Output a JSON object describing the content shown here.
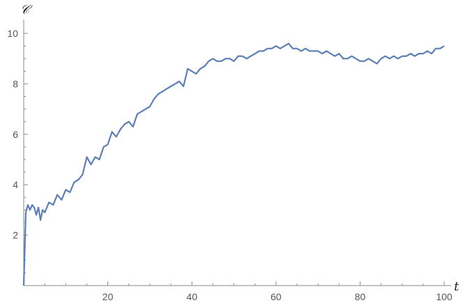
{
  "chart_data": {
    "type": "line",
    "title": "",
    "xlabel": "t",
    "ylabel": "𝒞",
    "xlim": [
      0,
      100
    ],
    "ylim": [
      0,
      10
    ],
    "xticks": [
      20,
      40,
      60,
      80,
      100
    ],
    "yticks": [
      2,
      4,
      6,
      8,
      10
    ],
    "grid": false,
    "legend": "none",
    "color": "#5a7fb5",
    "series": [
      {
        "x": [
          0,
          0.5,
          1,
          1.5,
          2,
          2.5,
          3,
          3.5,
          4,
          4.5,
          5,
          6,
          7,
          8,
          9,
          10,
          11,
          12,
          13,
          14,
          15,
          16,
          17,
          18,
          19,
          20,
          21,
          22,
          23,
          24,
          25,
          26,
          27,
          28,
          29,
          30,
          31,
          32,
          33,
          34,
          35,
          36,
          37,
          38,
          39,
          40,
          41,
          42,
          43,
          44,
          45,
          46,
          47,
          48,
          49,
          50,
          51,
          52,
          53,
          54,
          55,
          56,
          57,
          58,
          59,
          60,
          61,
          62,
          63,
          64,
          65,
          66,
          67,
          68,
          69,
          70,
          71,
          72,
          73,
          74,
          75,
          76,
          77,
          78,
          79,
          80,
          81,
          82,
          83,
          84,
          85,
          86,
          87,
          88,
          89,
          90,
          91,
          92,
          93,
          94,
          95,
          96,
          97,
          98,
          99,
          100
        ],
        "values": [
          0,
          2.9,
          3.2,
          3.0,
          3.2,
          3.1,
          2.8,
          3.1,
          2.6,
          3.0,
          2.9,
          3.3,
          3.2,
          3.6,
          3.4,
          3.8,
          3.7,
          4.1,
          4.2,
          4.4,
          5.1,
          4.8,
          5.1,
          5.0,
          5.5,
          5.6,
          6.1,
          5.9,
          6.2,
          6.4,
          6.5,
          6.3,
          6.8,
          6.9,
          7.0,
          7.1,
          7.4,
          7.6,
          7.7,
          7.8,
          7.9,
          8.0,
          8.1,
          7.9,
          8.6,
          8.5,
          8.4,
          8.6,
          8.7,
          8.9,
          9.0,
          8.9,
          8.9,
          9.0,
          9.0,
          8.9,
          9.1,
          9.1,
          9.0,
          9.1,
          9.2,
          9.3,
          9.3,
          9.4,
          9.4,
          9.5,
          9.4,
          9.5,
          9.6,
          9.4,
          9.4,
          9.3,
          9.4,
          9.3,
          9.3,
          9.3,
          9.2,
          9.3,
          9.2,
          9.1,
          9.2,
          9.0,
          9.0,
          9.1,
          9.0,
          8.9,
          8.9,
          9.0,
          8.9,
          8.8,
          9.0,
          9.1,
          9.0,
          9.1,
          9.0,
          9.1,
          9.1,
          9.2,
          9.1,
          9.2,
          9.2,
          9.3,
          9.2,
          9.4,
          9.4,
          9.5
        ]
      }
    ]
  }
}
